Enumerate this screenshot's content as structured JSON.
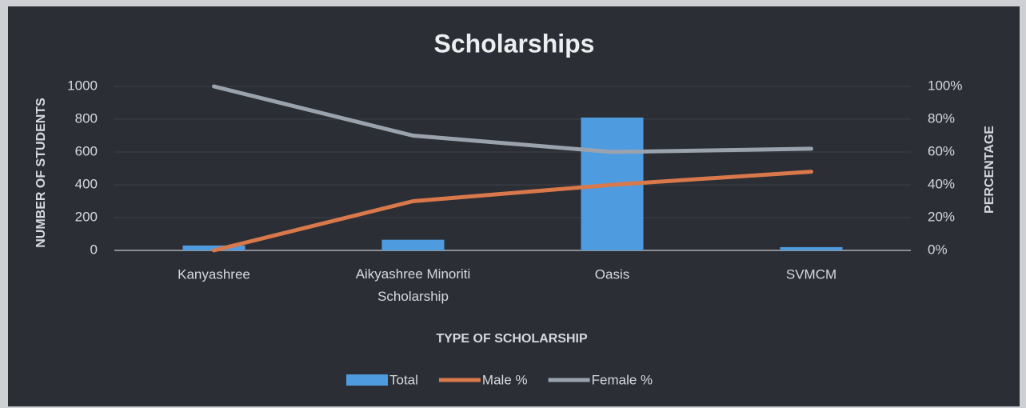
{
  "chart_data": {
    "type": "bar",
    "title": "Scholarships",
    "x_label": "TYPE OF SCHOLARSHIP",
    "y_label": "NUMBER OF STUDENTS",
    "y2_label": "PERCENTAGE",
    "categories": [
      "Kanyashree",
      "Aikyashree Minoriti Scholarship",
      "Oasis",
      "SVMCM"
    ],
    "series": [
      {
        "name": "Total",
        "type": "bar",
        "color": "#4f9be0",
        "values": [
          30,
          65,
          810,
          20
        ]
      },
      {
        "name": "Male %",
        "type": "line",
        "axis": "y2",
        "color": "#d9784a",
        "values": [
          0,
          30,
          40,
          48
        ]
      },
      {
        "name": "Female %",
        "type": "line",
        "axis": "y2",
        "color": "#9aa3ad",
        "values": [
          100,
          70,
          60,
          62
        ]
      }
    ],
    "ylim": [
      0,
      1000
    ],
    "yticks": [
      0,
      200,
      400,
      600,
      800,
      1000
    ],
    "y2lim": [
      0,
      100
    ],
    "y2ticks": [
      {
        "value": 0,
        "label": "0%"
      },
      {
        "value": 20,
        "label": "20%"
      },
      {
        "value": 40,
        "label": "40%"
      },
      {
        "value": 60,
        "label": "60%"
      },
      {
        "value": 80,
        "label": "80%"
      },
      {
        "value": 100,
        "label": "100%"
      }
    ],
    "grid": true,
    "legend": "bottom"
  }
}
